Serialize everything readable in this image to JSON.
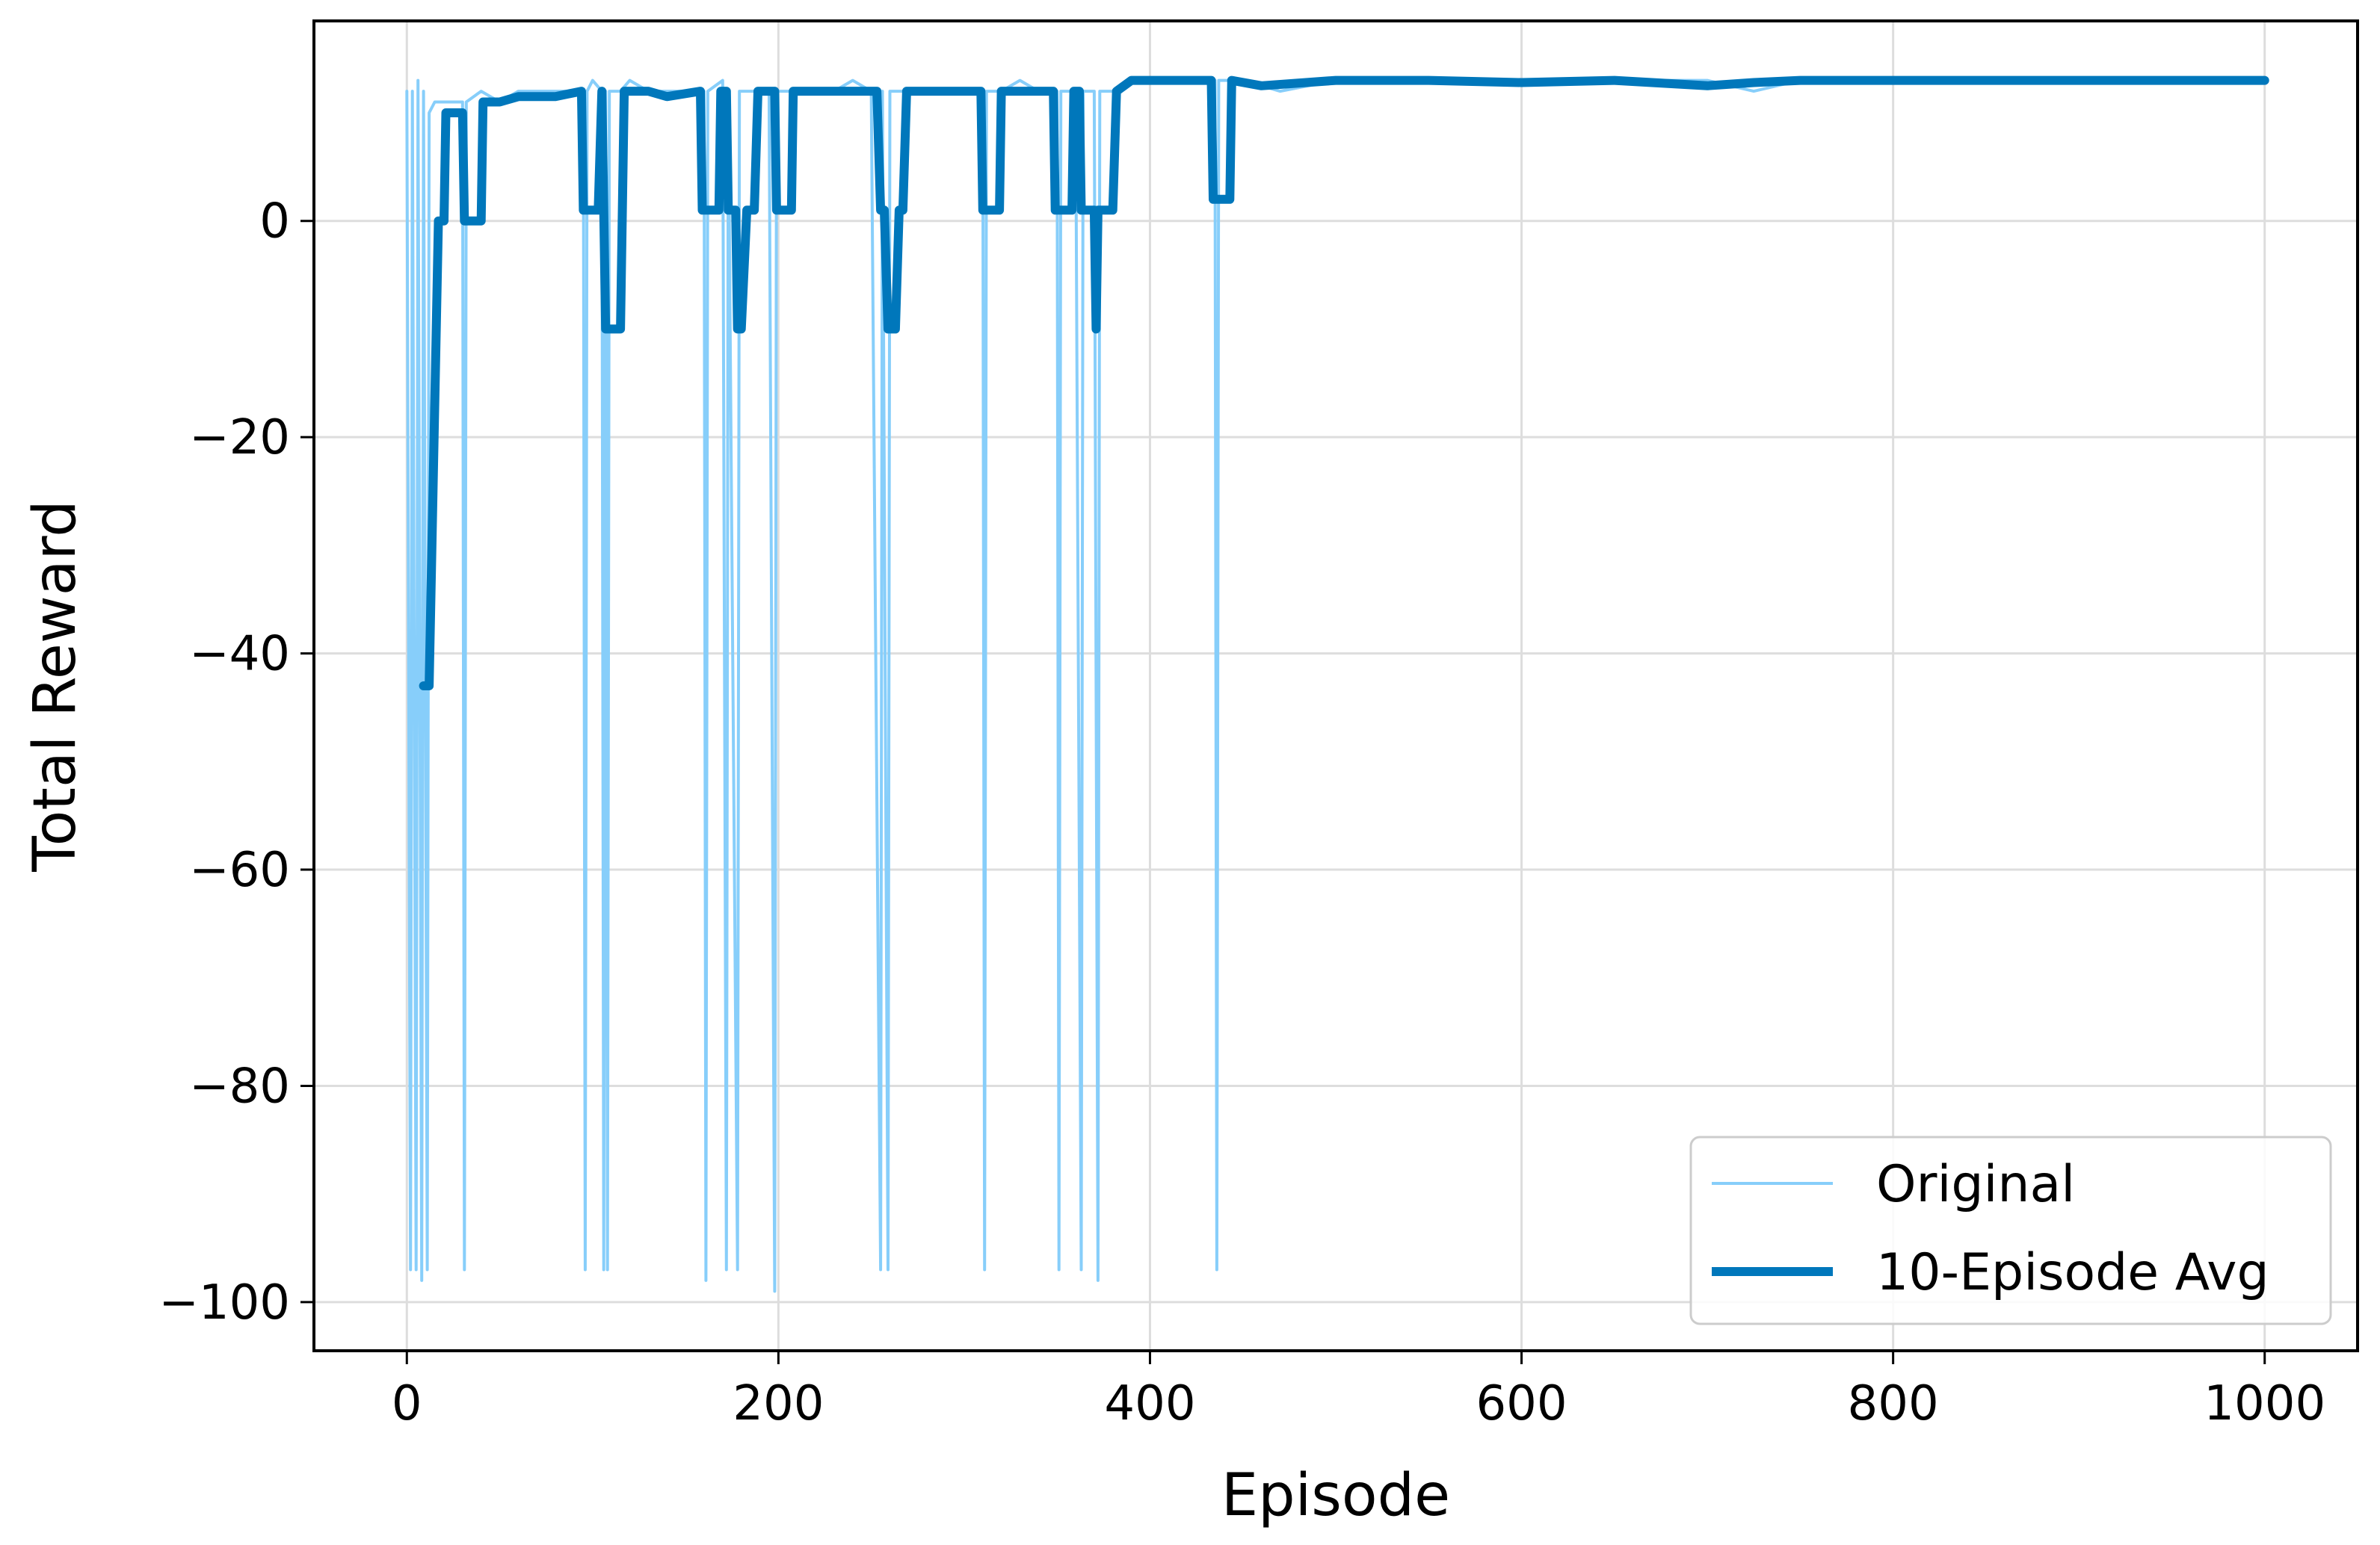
{
  "chart_data": {
    "type": "line",
    "title": "",
    "xlabel": "Episode",
    "ylabel": "Total Reward",
    "xlim": [
      -50,
      1050
    ],
    "ylim": [
      -104.5,
      18.5
    ],
    "xticks": [
      0,
      200,
      400,
      600,
      800,
      1000
    ],
    "yticks": [
      0,
      -20,
      -40,
      -60,
      -80,
      -100
    ],
    "grid": true,
    "legend_position": "lower-right",
    "series": [
      {
        "name": "Original",
        "color": "#87cefa",
        "points": [
          [
            0,
            12
          ],
          [
            2,
            -97
          ],
          [
            3,
            12
          ],
          [
            5,
            -97
          ],
          [
            6,
            13
          ],
          [
            8,
            -98
          ],
          [
            9,
            12
          ],
          [
            11,
            -97
          ],
          [
            12,
            10
          ],
          [
            15,
            11
          ],
          [
            20,
            11
          ],
          [
            25,
            11
          ],
          [
            30,
            11
          ],
          [
            31,
            -97
          ],
          [
            32,
            11
          ],
          [
            40,
            12
          ],
          [
            50,
            11
          ],
          [
            60,
            12
          ],
          [
            70,
            12
          ],
          [
            80,
            12
          ],
          [
            90,
            12
          ],
          [
            95,
            12
          ],
          [
            96,
            -97
          ],
          [
            97,
            12
          ],
          [
            100,
            13
          ],
          [
            105,
            12
          ],
          [
            106,
            -97
          ],
          [
            107,
            12
          ],
          [
            108,
            -97
          ],
          [
            109,
            12
          ],
          [
            115,
            12
          ],
          [
            120,
            13
          ],
          [
            130,
            12
          ],
          [
            140,
            12
          ],
          [
            150,
            12
          ],
          [
            160,
            12
          ],
          [
            161,
            -98
          ],
          [
            162,
            12
          ],
          [
            170,
            13
          ],
          [
            172,
            -97
          ],
          [
            173,
            12
          ],
          [
            178,
            -97
          ],
          [
            179,
            12
          ],
          [
            185,
            12
          ],
          [
            195,
            12
          ],
          [
            198,
            -99
          ],
          [
            199,
            12
          ],
          [
            210,
            12
          ],
          [
            220,
            12
          ],
          [
            230,
            12
          ],
          [
            240,
            13
          ],
          [
            250,
            12
          ],
          [
            255,
            -97
          ],
          [
            256,
            12
          ],
          [
            259,
            -97
          ],
          [
            260,
            12
          ],
          [
            270,
            12
          ],
          [
            280,
            12
          ],
          [
            290,
            12
          ],
          [
            300,
            12
          ],
          [
            310,
            12
          ],
          [
            311,
            -97
          ],
          [
            312,
            12
          ],
          [
            320,
            12
          ],
          [
            330,
            13
          ],
          [
            340,
            12
          ],
          [
            350,
            12
          ],
          [
            351,
            -97
          ],
          [
            352,
            12
          ],
          [
            360,
            12
          ],
          [
            363,
            -97
          ],
          [
            364,
            12
          ],
          [
            370,
            12
          ],
          [
            372,
            -98
          ],
          [
            373,
            12
          ],
          [
            380,
            12
          ],
          [
            390,
            13
          ],
          [
            400,
            13
          ],
          [
            420,
            13
          ],
          [
            435,
            13
          ],
          [
            436,
            -97
          ],
          [
            437,
            13
          ],
          [
            450,
            13
          ],
          [
            470,
            12
          ],
          [
            500,
            13
          ],
          [
            550,
            13
          ],
          [
            600,
            13
          ],
          [
            650,
            13
          ],
          [
            700,
            13
          ],
          [
            725,
            12
          ],
          [
            750,
            13
          ],
          [
            800,
            13
          ],
          [
            850,
            13
          ],
          [
            900,
            13
          ],
          [
            950,
            13
          ],
          [
            1000,
            13
          ]
        ]
      },
      {
        "name": "10-Episode Avg",
        "color": "#0077bb",
        "points": [
          [
            9,
            -43
          ],
          [
            12,
            -43
          ],
          [
            17,
            0
          ],
          [
            20,
            0
          ],
          [
            21,
            10
          ],
          [
            30,
            10
          ],
          [
            31,
            0
          ],
          [
            40,
            0
          ],
          [
            41,
            11
          ],
          [
            50,
            11
          ],
          [
            60,
            11.5
          ],
          [
            70,
            11.5
          ],
          [
            80,
            11.5
          ],
          [
            94,
            12
          ],
          [
            95,
            1
          ],
          [
            103,
            1
          ],
          [
            105,
            12
          ],
          [
            107,
            -10
          ],
          [
            115,
            -10
          ],
          [
            117,
            12
          ],
          [
            130,
            12
          ],
          [
            140,
            11.5
          ],
          [
            158,
            12
          ],
          [
            159,
            1
          ],
          [
            168,
            1
          ],
          [
            169,
            12
          ],
          [
            172,
            12
          ],
          [
            173,
            1
          ],
          [
            177,
            1
          ],
          [
            178,
            -10
          ],
          [
            180,
            -10
          ],
          [
            183,
            1
          ],
          [
            187,
            1
          ],
          [
            189,
            12
          ],
          [
            198,
            12
          ],
          [
            199,
            1
          ],
          [
            207,
            1
          ],
          [
            208,
            12
          ],
          [
            220,
            12
          ],
          [
            230,
            12
          ],
          [
            240,
            12
          ],
          [
            253,
            12
          ],
          [
            255,
            1
          ],
          [
            257,
            1
          ],
          [
            259,
            -10
          ],
          [
            263,
            -10
          ],
          [
            265,
            1
          ],
          [
            267,
            1
          ],
          [
            269,
            12
          ],
          [
            280,
            12
          ],
          [
            290,
            12
          ],
          [
            300,
            12
          ],
          [
            309,
            12
          ],
          [
            310,
            1
          ],
          [
            319,
            1
          ],
          [
            320,
            12
          ],
          [
            330,
            12
          ],
          [
            348,
            12
          ],
          [
            349,
            1
          ],
          [
            358,
            1
          ],
          [
            359,
            12
          ],
          [
            362,
            12
          ],
          [
            363,
            1
          ],
          [
            370,
            1
          ],
          [
            371,
            -10
          ],
          [
            372,
            1
          ],
          [
            380,
            1
          ],
          [
            382,
            12
          ],
          [
            390,
            13
          ],
          [
            400,
            13
          ],
          [
            420,
            13
          ],
          [
            433,
            13
          ],
          [
            434,
            2
          ],
          [
            443,
            2
          ],
          [
            444,
            13
          ],
          [
            460,
            12.5
          ],
          [
            500,
            13
          ],
          [
            550,
            13
          ],
          [
            600,
            12.8
          ],
          [
            650,
            13
          ],
          [
            700,
            12.5
          ],
          [
            725,
            12.8
          ],
          [
            750,
            13
          ],
          [
            800,
            13
          ],
          [
            850,
            13
          ],
          [
            900,
            13
          ],
          [
            950,
            13
          ],
          [
            1000,
            13
          ]
        ]
      }
    ]
  },
  "style": {
    "grid_color": "#dddddd",
    "frame_color": "#000000"
  }
}
